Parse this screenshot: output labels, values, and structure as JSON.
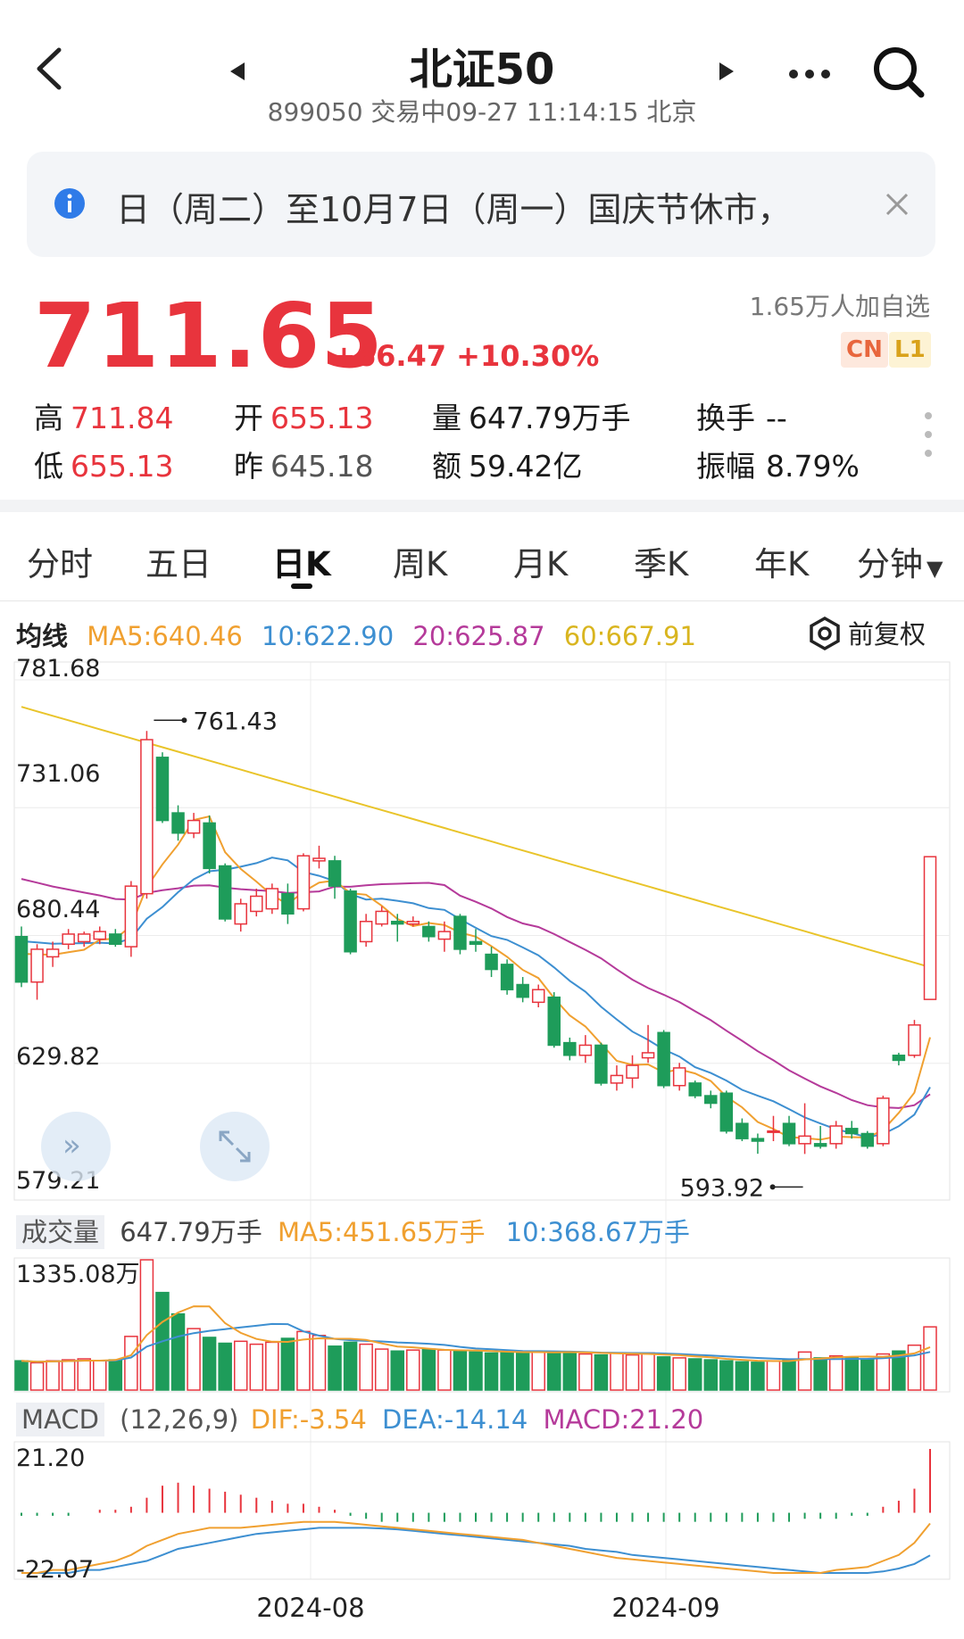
{
  "header": {
    "title": "北证50",
    "subtitle": "899050 交易中09-27 11:14:15 北京"
  },
  "notice": {
    "text": "日（周二）至10月7日（周一）国庆节休市，"
  },
  "quote": {
    "price": "711.65",
    "change": "+66.47 +10.30%",
    "followers": "1.65万人加自选",
    "badges": [
      "CN",
      "L1"
    ],
    "stats": {
      "high_label": "高",
      "high": "711.84",
      "open_label": "开",
      "open": "655.13",
      "volume_label": "量",
      "volume": "647.79万手",
      "turnover_label": "换手",
      "turnover": "--",
      "low_label": "低",
      "low": "655.13",
      "prev_label": "昨",
      "prev": "645.18",
      "amount_label": "额",
      "amount": "59.42亿",
      "amplitude_label": "振幅",
      "amplitude": "8.79%"
    }
  },
  "tabs": [
    "分时",
    "五日",
    "日K",
    "周K",
    "月K",
    "季K",
    "年K",
    "分钟"
  ],
  "active_tab": "日K",
  "ma_legend": {
    "label": "均线",
    "ma5": "MA5:640.46",
    "ma10": "10:622.90",
    "ma20": "20:625.87",
    "ma60": "60:667.91",
    "adjust": "前复权"
  },
  "volume_legend": {
    "label": "成交量",
    "value": "647.79万手",
    "ma5": "MA5:451.65万手",
    "ma10": "10:368.67万手"
  },
  "macd_legend": {
    "label": "MACD",
    "params": "(12,26,9)",
    "dif": "DIF:-3.54",
    "dea": "DEA:-14.14",
    "macd": "MACD:21.20"
  },
  "colors": {
    "up": "#e8343d",
    "down": "#1e9c5a",
    "ma5": "#f0a030",
    "ma10": "#3d8fd1",
    "ma20": "#b53a9a",
    "ma60": "#e9c42a"
  },
  "chart_data": {
    "type": "candlestick",
    "price_axis": {
      "ticks": [
        "781.68",
        "731.06",
        "680.44",
        "629.82",
        "579.21"
      ],
      "ylim": [
        579.21,
        781.68
      ]
    },
    "high_marker": "761.43",
    "low_marker": "593.92",
    "x_labels": [
      "2024-08",
      "2024-09"
    ],
    "candles": [
      {
        "o": 680,
        "c": 662,
        "h": 684,
        "l": 660
      },
      {
        "o": 662,
        "c": 675,
        "h": 677,
        "l": 655
      },
      {
        "o": 672,
        "c": 675,
        "h": 678,
        "l": 668
      },
      {
        "o": 677,
        "c": 681,
        "h": 683,
        "l": 675
      },
      {
        "o": 678,
        "c": 681,
        "h": 682,
        "l": 676
      },
      {
        "o": 679,
        "c": 682,
        "h": 684,
        "l": 677
      },
      {
        "o": 681,
        "c": 677,
        "h": 683,
        "l": 676
      },
      {
        "o": 676,
        "c": 700,
        "h": 702,
        "l": 672
      },
      {
        "o": 697,
        "c": 758,
        "h": 761.43,
        "l": 695
      },
      {
        "o": 751,
        "c": 726,
        "h": 753,
        "l": 725
      },
      {
        "o": 729,
        "c": 721,
        "h": 732,
        "l": 718
      },
      {
        "o": 721,
        "c": 726,
        "h": 729,
        "l": 719
      },
      {
        "o": 725,
        "c": 707,
        "h": 728,
        "l": 705
      },
      {
        "o": 708,
        "c": 687,
        "h": 709,
        "l": 686
      },
      {
        "o": 685,
        "c": 693,
        "h": 695,
        "l": 682
      },
      {
        "o": 690,
        "c": 696,
        "h": 699,
        "l": 688
      },
      {
        "o": 691,
        "c": 699,
        "h": 701,
        "l": 689
      },
      {
        "o": 697,
        "c": 689,
        "h": 701,
        "l": 685
      },
      {
        "o": 691,
        "c": 712,
        "h": 713,
        "l": 690
      },
      {
        "o": 710,
        "c": 711,
        "h": 716,
        "l": 707
      },
      {
        "o": 710,
        "c": 700,
        "h": 712,
        "l": 695
      },
      {
        "o": 698,
        "c": 674,
        "h": 699,
        "l": 673
      },
      {
        "o": 678,
        "c": 686,
        "h": 689,
        "l": 676
      },
      {
        "o": 685,
        "c": 690,
        "h": 692,
        "l": 684
      },
      {
        "o": 686,
        "c": 685,
        "h": 689,
        "l": 678
      },
      {
        "o": 685,
        "c": 686,
        "h": 688,
        "l": 684
      },
      {
        "o": 684,
        "c": 680,
        "h": 686,
        "l": 678
      },
      {
        "o": 679,
        "c": 682,
        "h": 686,
        "l": 674
      },
      {
        "o": 688,
        "c": 675,
        "h": 689,
        "l": 673
      },
      {
        "o": 678,
        "c": 677,
        "h": 683,
        "l": 674
      },
      {
        "o": 673,
        "c": 667,
        "h": 676,
        "l": 664
      },
      {
        "o": 669,
        "c": 659,
        "h": 671,
        "l": 657
      },
      {
        "o": 661,
        "c": 656,
        "h": 664,
        "l": 654
      },
      {
        "o": 654,
        "c": 659,
        "h": 661,
        "l": 652
      },
      {
        "o": 656,
        "c": 637,
        "h": 658,
        "l": 636
      },
      {
        "o": 638,
        "c": 633,
        "h": 640,
        "l": 631
      },
      {
        "o": 633,
        "c": 637,
        "h": 641,
        "l": 630
      },
      {
        "o": 637,
        "c": 622,
        "h": 638,
        "l": 621
      },
      {
        "o": 622,
        "c": 625,
        "h": 629,
        "l": 619
      },
      {
        "o": 624,
        "c": 629,
        "h": 633,
        "l": 620
      },
      {
        "o": 632,
        "c": 634,
        "h": 645,
        "l": 630
      },
      {
        "o": 642,
        "c": 621,
        "h": 643,
        "l": 620
      },
      {
        "o": 621,
        "c": 628,
        "h": 630,
        "l": 619
      },
      {
        "o": 622,
        "c": 617,
        "h": 623,
        "l": 616
      },
      {
        "o": 617,
        "c": 614,
        "h": 619,
        "l": 612
      },
      {
        "o": 618,
        "c": 603,
        "h": 619,
        "l": 602
      },
      {
        "o": 606,
        "c": 600,
        "h": 608,
        "l": 599
      },
      {
        "o": 600,
        "c": 599,
        "h": 602,
        "l": 594
      },
      {
        "o": 603,
        "c": 603,
        "h": 609,
        "l": 599
      },
      {
        "o": 606,
        "c": 598,
        "h": 609,
        "l": 597
      },
      {
        "o": 598,
        "c": 601,
        "h": 614,
        "l": 593.92
      },
      {
        "o": 598,
        "c": 597,
        "h": 605,
        "l": 596
      },
      {
        "o": 598,
        "c": 605,
        "h": 607,
        "l": 596
      },
      {
        "o": 604,
        "c": 602,
        "h": 607,
        "l": 600
      },
      {
        "o": 602,
        "c": 597,
        "h": 603,
        "l": 596
      },
      {
        "o": 598,
        "c": 616,
        "h": 617,
        "l": 597
      },
      {
        "o": 633,
        "c": 631,
        "h": 634,
        "l": 629
      },
      {
        "o": 633,
        "c": 645,
        "h": 647,
        "l": 632
      },
      {
        "o": 655.13,
        "c": 711.65,
        "h": 711.84,
        "l": 655.13
      }
    ],
    "volume": {
      "axis_max": "1335.08万",
      "values": [
        300,
        280,
        300,
        310,
        320,
        300,
        310,
        550,
        1335,
        1000,
        780,
        630,
        540,
        480,
        500,
        470,
        490,
        530,
        600,
        560,
        450,
        490,
        470,
        420,
        400,
        410,
        420,
        410,
        400,
        390,
        380,
        385,
        390,
        400,
        380,
        390,
        370,
        360,
        380,
        360,
        380,
        340,
        330,
        320,
        310,
        300,
        290,
        285,
        300,
        310,
        390,
        330,
        350,
        330,
        320,
        370,
        400,
        460,
        647.79
      ],
      "ylim": [
        0,
        1335.08
      ]
    },
    "macd": {
      "axis_ticks": [
        "21.20",
        "-22.07"
      ],
      "ylim": [
        -22.07,
        21.2
      ],
      "hist": [
        -1,
        -1,
        -1,
        -1,
        0,
        1,
        1,
        2,
        5,
        9,
        10,
        9,
        8,
        7,
        6,
        5,
        4,
        3,
        3,
        2,
        1,
        -1,
        -2,
        -3,
        -3,
        -3,
        -3,
        -3,
        -3,
        -3,
        -3,
        -3,
        -3,
        -3,
        -3,
        -3,
        -3,
        -3,
        -3,
        -3,
        -3,
        -3,
        -3,
        -3,
        -3,
        -3,
        -3,
        -3,
        -3,
        -3,
        -2,
        -2,
        -2,
        -1,
        -1,
        2,
        4,
        8,
        21.2
      ],
      "dif": [
        -20,
        -20,
        -19,
        -19,
        -18,
        -17,
        -16,
        -14,
        -11,
        -9,
        -7,
        -6,
        -5,
        -5,
        -5,
        -4.5,
        -4,
        -3.5,
        -3,
        -3,
        -3,
        -3.5,
        -4,
        -4.5,
        -5,
        -5.5,
        -6,
        -6.5,
        -7,
        -7.5,
        -8,
        -8.5,
        -9,
        -10,
        -11,
        -12,
        -13,
        -14,
        -15,
        -15.5,
        -16,
        -16.5,
        -17,
        -17.5,
        -18,
        -18.5,
        -19,
        -19.5,
        -20,
        -20,
        -20,
        -20,
        -19,
        -18.5,
        -18,
        -16,
        -14,
        -10,
        -3.54
      ],
      "dea": [
        -20,
        -20,
        -20,
        -20,
        -19,
        -19,
        -18,
        -17,
        -16,
        -14,
        -12,
        -11,
        -10,
        -9,
        -8,
        -7,
        -6.5,
        -6,
        -5.5,
        -5,
        -5,
        -5,
        -5,
        -5.2,
        -5.5,
        -6,
        -6.5,
        -7,
        -7.5,
        -8,
        -8.5,
        -9,
        -9.5,
        -10,
        -10.5,
        -11,
        -12,
        -12.5,
        -13,
        -14,
        -14.5,
        -15,
        -15.5,
        -16,
        -16.5,
        -17,
        -17.5,
        -18,
        -18.5,
        -19,
        -19.5,
        -20,
        -20,
        -20,
        -20,
        -19.5,
        -18.5,
        -17,
        -14.14
      ]
    }
  }
}
